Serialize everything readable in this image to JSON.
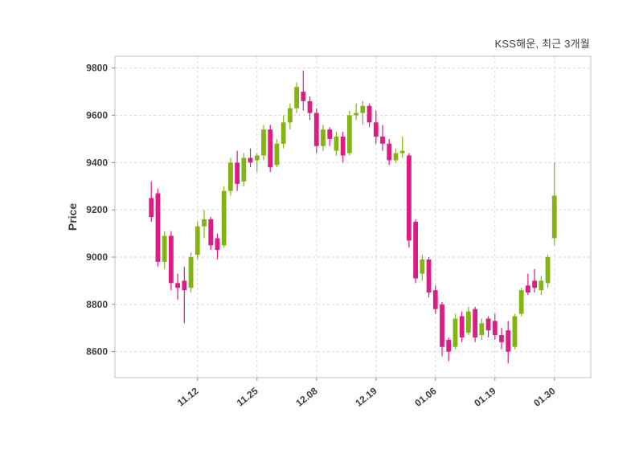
{
  "chart_data": {
    "type": "candlestick",
    "title": "KSS해운, 최근 3개월",
    "ylabel": "Price",
    "xlabel": "",
    "grid": true,
    "legend": "none",
    "ylim": [
      8490,
      9850
    ],
    "y_ticks": [
      8600,
      8800,
      9000,
      9200,
      9400,
      9600,
      9800
    ],
    "x_tick_indices": [
      7,
      16,
      25,
      34,
      43,
      52,
      61
    ],
    "x_tick_labels": [
      "11.12",
      "11.25",
      "12.08",
      "12.19",
      "01.06",
      "01.19",
      "01.30"
    ],
    "up_color": "#84b414",
    "down_color": "#dc1e82",
    "grid_color": "#d6d6d6",
    "text_color": "#3d3d3d",
    "candles": [
      [
        9250,
        9320,
        9150,
        9170
      ],
      [
        9270,
        9290,
        8960,
        8980
      ],
      [
        8980,
        9110,
        8950,
        9090
      ],
      [
        9090,
        9110,
        8860,
        8890
      ],
      [
        8890,
        8930,
        8820,
        8870
      ],
      [
        8900,
        8960,
        8720,
        8860
      ],
      [
        8870,
        9020,
        8850,
        9000
      ],
      [
        9010,
        9150,
        8990,
        9130
      ],
      [
        9130,
        9200,
        9080,
        9160
      ],
      [
        9160,
        9170,
        9030,
        9050
      ],
      [
        9080,
        9100,
        8990,
        9030
      ],
      [
        9050,
        9300,
        9040,
        9280
      ],
      [
        9280,
        9420,
        9260,
        9400
      ],
      [
        9400,
        9450,
        9280,
        9310
      ],
      [
        9320,
        9440,
        9300,
        9420
      ],
      [
        9420,
        9460,
        9380,
        9400
      ],
      [
        9410,
        9440,
        9360,
        9430
      ],
      [
        9430,
        9560,
        9410,
        9540
      ],
      [
        9540,
        9560,
        9360,
        9380
      ],
      [
        9390,
        9500,
        9380,
        9480
      ],
      [
        9480,
        9600,
        9460,
        9570
      ],
      [
        9570,
        9650,
        9540,
        9630
      ],
      [
        9630,
        9740,
        9610,
        9720
      ],
      [
        9700,
        9790,
        9620,
        9660
      ],
      [
        9660,
        9680,
        9580,
        9610
      ],
      [
        9610,
        9630,
        9440,
        9470
      ],
      [
        9470,
        9560,
        9450,
        9540
      ],
      [
        9540,
        9550,
        9470,
        9500
      ],
      [
        9450,
        9530,
        9430,
        9510
      ],
      [
        9510,
        9530,
        9400,
        9430
      ],
      [
        9440,
        9620,
        9430,
        9600
      ],
      [
        9600,
        9650,
        9580,
        9610
      ],
      [
        9610,
        9660,
        9560,
        9640
      ],
      [
        9640,
        9650,
        9550,
        9570
      ],
      [
        9570,
        9620,
        9480,
        9510
      ],
      [
        9510,
        9560,
        9450,
        9480
      ],
      [
        9480,
        9500,
        9390,
        9410
      ],
      [
        9410,
        9460,
        9400,
        9440
      ],
      [
        9440,
        9510,
        9420,
        9450
      ],
      [
        9430,
        9440,
        9040,
        9070
      ],
      [
        9150,
        9160,
        8890,
        8910
      ],
      [
        8930,
        9010,
        8900,
        8990
      ],
      [
        8990,
        9000,
        8830,
        8850
      ],
      [
        8860,
        8880,
        8760,
        8780
      ],
      [
        8800,
        8810,
        8580,
        8620
      ],
      [
        8650,
        8660,
        8560,
        8600
      ],
      [
        8620,
        8760,
        8610,
        8740
      ],
      [
        8750,
        8770,
        8640,
        8660
      ],
      [
        8680,
        8790,
        8670,
        8770
      ],
      [
        8780,
        8790,
        8640,
        8660
      ],
      [
        8670,
        8740,
        8650,
        8720
      ],
      [
        8740,
        8750,
        8660,
        8690
      ],
      [
        8730,
        8760,
        8650,
        8670
      ],
      [
        8670,
        8700,
        8610,
        8640
      ],
      [
        8690,
        8730,
        8550,
        8600
      ],
      [
        8620,
        8760,
        8610,
        8750
      ],
      [
        8760,
        8870,
        8750,
        8860
      ],
      [
        8880,
        8930,
        8840,
        8850
      ],
      [
        8900,
        8950,
        8850,
        8870
      ],
      [
        8860,
        8920,
        8840,
        8900
      ],
      [
        8890,
        9010,
        8870,
        9000
      ],
      [
        9080,
        9400,
        9050,
        9260
      ]
    ]
  }
}
